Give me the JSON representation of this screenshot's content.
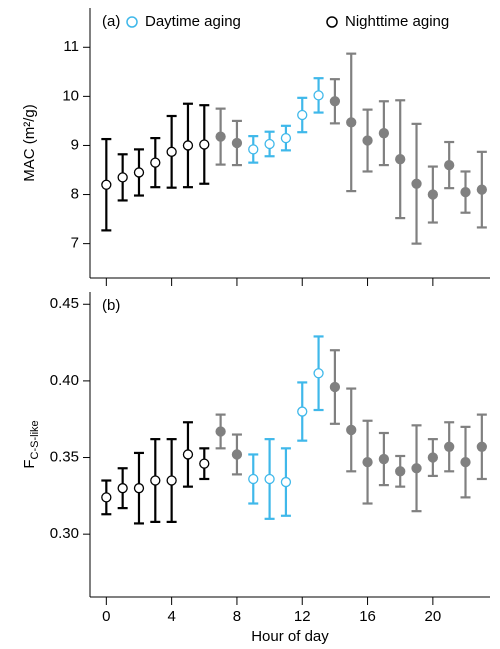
{
  "chart_data": [
    {
      "type": "errorbar",
      "label": "(a)",
      "ylabel": "MAC (m²/g)",
      "xlim": [
        -1,
        23.5
      ],
      "xticks": [
        0,
        4,
        8,
        12,
        16,
        20
      ],
      "ylim": [
        6.3,
        11.8
      ],
      "yticks": [
        7,
        8,
        9,
        10,
        11
      ],
      "legend": "top",
      "series": [
        {
          "name": "Daytime aging",
          "color": "#3fb8ea",
          "filled": false,
          "x": [
            9,
            10,
            11,
            12,
            13
          ],
          "values": [
            8.92,
            9.03,
            9.15,
            9.62,
            10.02
          ],
          "errors": [
            0.27,
            0.25,
            0.25,
            0.35,
            0.35
          ]
        },
        {
          "name": "Nighttime aging",
          "color": "#000000",
          "filled": false,
          "x": [
            0,
            1,
            2,
            3,
            4,
            5,
            6
          ],
          "values": [
            8.2,
            8.35,
            8.45,
            8.65,
            8.87,
            9.0,
            9.02
          ],
          "errors": [
            0.93,
            0.47,
            0.47,
            0.5,
            0.73,
            0.85,
            0.8
          ]
        },
        {
          "color": "#808080",
          "filled": true,
          "x": [
            7,
            8,
            14,
            15,
            16,
            17,
            18,
            19,
            20,
            21,
            22,
            23
          ],
          "values": [
            9.18,
            9.05,
            9.9,
            9.47,
            9.1,
            9.25,
            8.72,
            8.22,
            8.0,
            8.6,
            8.05,
            8.1
          ],
          "errors": [
            0.57,
            0.45,
            0.45,
            1.4,
            0.63,
            0.65,
            1.2,
            1.22,
            0.57,
            0.47,
            0.42,
            0.77
          ]
        }
      ]
    },
    {
      "type": "errorbar",
      "label": "(b)",
      "ylabel": "F",
      "ylabel_subscript": "C-S-like",
      "xlabel": "Hour of day",
      "xlim": [
        -1,
        23.5
      ],
      "xticks": [
        0,
        4,
        8,
        12,
        16,
        20
      ],
      "ylim": [
        0.259,
        0.458
      ],
      "yticks": [
        {
          "value": 0.3,
          "label": "0.30"
        },
        0.35,
        {
          "value": 0.4,
          "label": "0.40"
        },
        0.45
      ],
      "series": [
        {
          "color": "#3fb8ea",
          "filled": false,
          "x": [
            9,
            10,
            11,
            12,
            13
          ],
          "values": [
            0.336,
            0.336,
            0.334,
            0.38,
            0.405
          ],
          "errors": [
            0.016,
            0.026,
            0.022,
            0.019,
            0.024
          ]
        },
        {
          "color": "#000000",
          "filled": false,
          "x": [
            0,
            1,
            2,
            3,
            4,
            5,
            6
          ],
          "values": [
            0.324,
            0.33,
            0.33,
            0.335,
            0.335,
            0.352,
            0.346
          ],
          "errors": [
            0.011,
            0.013,
            0.023,
            0.027,
            0.027,
            0.021,
            0.01
          ]
        },
        {
          "color": "#808080",
          "filled": true,
          "x": [
            7,
            8,
            14,
            15,
            16,
            17,
            18,
            19,
            20,
            21,
            22,
            23
          ],
          "values": [
            0.367,
            0.352,
            0.396,
            0.368,
            0.347,
            0.349,
            0.341,
            0.343,
            0.35,
            0.357,
            0.347,
            0.357
          ],
          "errors": [
            0.011,
            0.013,
            0.024,
            0.027,
            0.027,
            0.017,
            0.01,
            0.028,
            0.012,
            0.016,
            0.023,
            0.021
          ]
        }
      ]
    }
  ]
}
